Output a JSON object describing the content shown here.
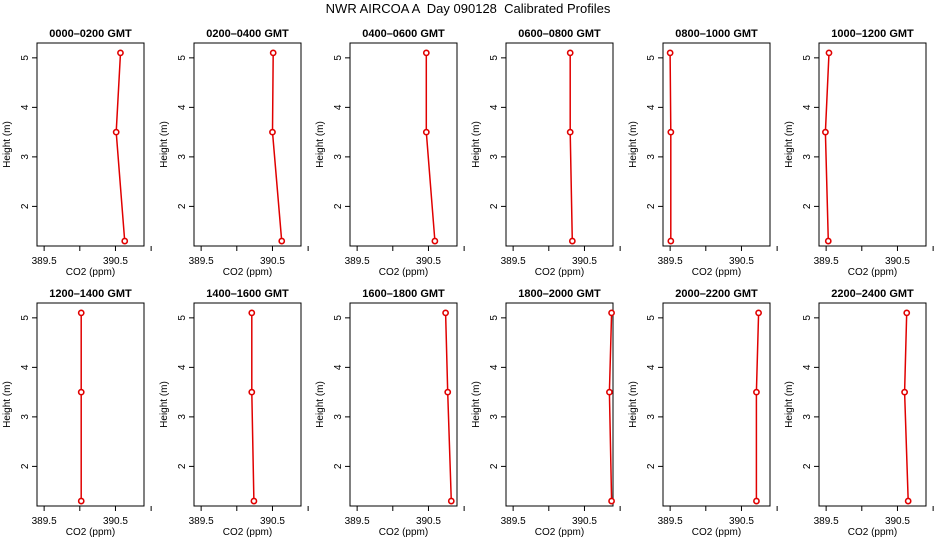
{
  "title": "NWR AIRCOA A  Day 090128  Calibrated Profiles",
  "colors": {
    "profile": "#e00000",
    "axis": "#000000"
  },
  "chart_data": [
    {
      "type": "line",
      "title": "0000–0200 GMT",
      "xlabel": "CO2 (ppm)",
      "ylabel": "Height (m)",
      "xlim": [
        389.4,
        390.9
      ],
      "ylim": [
        1.2,
        5.3
      ],
      "xticks": [
        389.5,
        390.0,
        390.5,
        391.0
      ],
      "xtick_labels": [
        "389.5",
        "",
        "390.5",
        ""
      ],
      "yticks": [
        2,
        3,
        4,
        5
      ],
      "x": [
        390.63,
        390.51,
        390.57
      ],
      "y": [
        1.3,
        3.5,
        5.1
      ]
    },
    {
      "type": "line",
      "title": "0200–0400 GMT",
      "xlabel": "CO2 (ppm)",
      "ylabel": "Height (m)",
      "xlim": [
        389.4,
        390.9
      ],
      "ylim": [
        1.2,
        5.3
      ],
      "xticks": [
        389.5,
        390.0,
        390.5,
        391.0
      ],
      "xtick_labels": [
        "389.5",
        "",
        "390.5",
        ""
      ],
      "yticks": [
        2,
        3,
        4,
        5
      ],
      "x": [
        390.63,
        390.5,
        390.51
      ],
      "y": [
        1.3,
        3.5,
        5.1
      ]
    },
    {
      "type": "line",
      "title": "0400–0600 GMT",
      "xlabel": "CO2 (ppm)",
      "ylabel": "Height (m)",
      "xlim": [
        389.4,
        390.9
      ],
      "ylim": [
        1.2,
        5.3
      ],
      "xticks": [
        389.5,
        390.0,
        390.5,
        391.0
      ],
      "xtick_labels": [
        "389.5",
        "",
        "390.5",
        ""
      ],
      "yticks": [
        2,
        3,
        4,
        5
      ],
      "x": [
        390.59,
        390.47,
        390.47
      ],
      "y": [
        1.3,
        3.5,
        5.1
      ]
    },
    {
      "type": "line",
      "title": "0600–0800 GMT",
      "xlabel": "CO2 (ppm)",
      "ylabel": "Height (m)",
      "xlim": [
        389.4,
        390.9
      ],
      "ylim": [
        1.2,
        5.3
      ],
      "xticks": [
        389.5,
        390.0,
        390.5,
        391.0
      ],
      "xtick_labels": [
        "389.5",
        "",
        "390.5",
        ""
      ],
      "yticks": [
        2,
        3,
        4,
        5
      ],
      "x": [
        390.33,
        390.3,
        390.3
      ],
      "y": [
        1.3,
        3.5,
        5.1
      ]
    },
    {
      "type": "line",
      "title": "0800–1000 GMT",
      "xlabel": "CO2 (ppm)",
      "ylabel": "Height (m)",
      "xlim": [
        389.4,
        390.9
      ],
      "ylim": [
        1.2,
        5.3
      ],
      "xticks": [
        389.5,
        390.0,
        390.5,
        391.0
      ],
      "xtick_labels": [
        "389.5",
        "",
        "390.5",
        ""
      ],
      "yticks": [
        2,
        3,
        4,
        5
      ],
      "x": [
        389.51,
        389.51,
        389.5
      ],
      "y": [
        1.3,
        3.5,
        5.1
      ]
    },
    {
      "type": "line",
      "title": "1000–1200 GMT",
      "xlabel": "CO2 (ppm)",
      "ylabel": "Height (m)",
      "xlim": [
        389.4,
        390.9
      ],
      "ylim": [
        1.2,
        5.3
      ],
      "xticks": [
        389.5,
        390.0,
        390.5,
        391.0
      ],
      "xtick_labels": [
        "389.5",
        "",
        "390.5",
        ""
      ],
      "yticks": [
        2,
        3,
        4,
        5
      ],
      "x": [
        389.53,
        389.49,
        389.54
      ],
      "y": [
        1.3,
        3.5,
        5.1
      ]
    },
    {
      "type": "line",
      "title": "1200–1400 GMT",
      "xlabel": "CO2 (ppm)",
      "ylabel": "Height (m)",
      "xlim": [
        389.4,
        390.9
      ],
      "ylim": [
        1.2,
        5.3
      ],
      "xticks": [
        389.5,
        390.0,
        390.5,
        391.0
      ],
      "xtick_labels": [
        "389.5",
        "",
        "390.5",
        ""
      ],
      "yticks": [
        2,
        3,
        4,
        5
      ],
      "x": [
        390.02,
        390.02,
        390.02
      ],
      "y": [
        1.3,
        3.5,
        5.1
      ]
    },
    {
      "type": "line",
      "title": "1400–1600 GMT",
      "xlabel": "CO2 (ppm)",
      "ylabel": "Height (m)",
      "xlim": [
        389.4,
        390.9
      ],
      "ylim": [
        1.2,
        5.3
      ],
      "xticks": [
        389.5,
        390.0,
        390.5,
        391.0
      ],
      "xtick_labels": [
        "389.5",
        "",
        "390.5",
        ""
      ],
      "yticks": [
        2,
        3,
        4,
        5
      ],
      "x": [
        390.24,
        390.21,
        390.21
      ],
      "y": [
        1.3,
        3.5,
        5.1
      ]
    },
    {
      "type": "line",
      "title": "1600–1800 GMT",
      "xlabel": "CO2 (ppm)",
      "ylabel": "Height (m)",
      "xlim": [
        389.4,
        390.9
      ],
      "ylim": [
        1.2,
        5.3
      ],
      "xticks": [
        389.5,
        390.0,
        390.5,
        391.0
      ],
      "xtick_labels": [
        "389.5",
        "",
        "390.5",
        ""
      ],
      "yticks": [
        2,
        3,
        4,
        5
      ],
      "x": [
        390.82,
        390.77,
        390.74
      ],
      "y": [
        1.3,
        3.5,
        5.1
      ]
    },
    {
      "type": "line",
      "title": "1800–2000 GMT",
      "xlabel": "CO2 (ppm)",
      "ylabel": "Height (m)",
      "xlim": [
        389.4,
        390.9
      ],
      "ylim": [
        1.2,
        5.3
      ],
      "xticks": [
        389.5,
        390.0,
        390.5,
        391.0
      ],
      "xtick_labels": [
        "389.5",
        "",
        "390.5",
        ""
      ],
      "yticks": [
        2,
        3,
        4,
        5
      ],
      "x": [
        390.88,
        390.85,
        390.88
      ],
      "y": [
        1.3,
        3.5,
        5.1
      ]
    },
    {
      "type": "line",
      "title": "2000–2200 GMT",
      "xlabel": "CO2 (ppm)",
      "ylabel": "Height (m)",
      "xlim": [
        389.4,
        390.9
      ],
      "ylim": [
        1.2,
        5.3
      ],
      "xticks": [
        389.5,
        390.0,
        390.5,
        391.0
      ],
      "xtick_labels": [
        "389.5",
        "",
        "390.5",
        ""
      ],
      "yticks": [
        2,
        3,
        4,
        5
      ],
      "x": [
        390.71,
        390.71,
        390.74
      ],
      "y": [
        1.3,
        3.5,
        5.1
      ]
    },
    {
      "type": "line",
      "title": "2200–2400 GMT",
      "xlabel": "CO2 (ppm)",
      "ylabel": "Height (m)",
      "xlim": [
        389.4,
        390.9
      ],
      "ylim": [
        1.2,
        5.3
      ],
      "xticks": [
        389.5,
        390.0,
        390.5,
        391.0
      ],
      "xtick_labels": [
        "389.5",
        "",
        "390.5",
        ""
      ],
      "yticks": [
        2,
        3,
        4,
        5
      ],
      "x": [
        390.65,
        390.6,
        390.63
      ],
      "y": [
        1.3,
        3.5,
        5.1
      ]
    }
  ]
}
